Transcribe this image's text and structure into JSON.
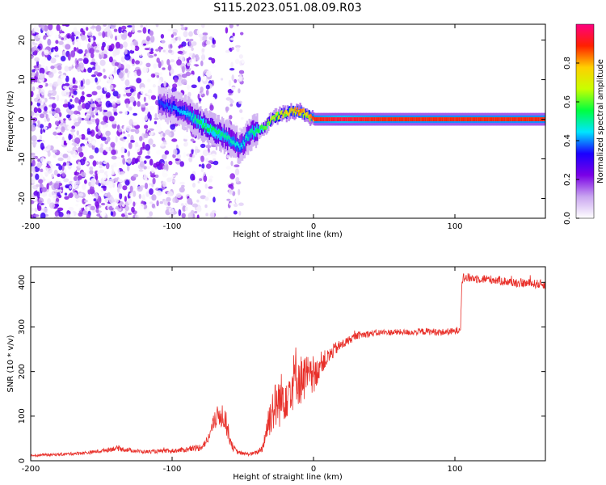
{
  "title": "S115.2023.051.08.09.R03",
  "colors": {
    "snr_line": "#e8302a",
    "axis": "#000000"
  },
  "chart_data": [
    {
      "type": "heatmap",
      "xlabel": "Height of straight line (km)",
      "ylabel": "Frequency (Hz)",
      "xlim": [
        -200,
        164
      ],
      "ylim": [
        -25,
        24
      ],
      "xticks": [
        -200,
        -100,
        0,
        100
      ],
      "yticks": [
        -20,
        -10,
        0,
        10,
        20
      ],
      "xtick_labels": [
        "-200",
        "-100",
        "0",
        "100"
      ],
      "ytick_labels": [
        "-20",
        "-10",
        "0",
        "10",
        "20"
      ],
      "colorbar": {
        "label": "Normalized spectral amplitude",
        "range": [
          0,
          1
        ],
        "ticks": [
          0,
          0.2,
          0.4,
          0.6,
          0.8
        ],
        "tick_labels": [
          "0.0",
          "0.2",
          "0.4",
          "0.6",
          "0.8"
        ],
        "colormap": [
          "#ffffff",
          "#c9a6f0",
          "#7a00e6",
          "#1a00ff",
          "#00e5ff",
          "#00ff40",
          "#c8ff00",
          "#ffd000",
          "#ff2000",
          "#ff0080"
        ]
      },
      "ridge": {
        "x": [
          -110,
          -100,
          -90,
          -80,
          -70,
          -60,
          -52,
          -45,
          -40,
          -35,
          -30,
          -25,
          -20,
          -15,
          -10,
          -5,
          0,
          20,
          50,
          100,
          164
        ],
        "freq": [
          4,
          3,
          1.5,
          -1,
          -3,
          -5,
          -7,
          -3.5,
          -3,
          -2,
          0,
          1,
          1.5,
          2,
          2,
          1,
          0,
          0,
          0,
          0,
          0
        ],
        "amplitude": [
          0.35,
          0.4,
          0.45,
          0.55,
          0.55,
          0.5,
          0.45,
          0.5,
          0.55,
          0.6,
          0.65,
          0.7,
          0.75,
          0.8,
          0.85,
          0.75,
          0.9,
          0.95,
          0.9,
          0.9,
          0.9
        ]
      },
      "noise_region": {
        "x_range": [
          -200,
          -50
        ],
        "freq_range": [
          -25,
          24
        ],
        "max_amplitude": 0.3
      }
    },
    {
      "type": "line",
      "xlabel": "Height of straight line (km)",
      "ylabel": "SNR (10 * v/v)",
      "xlim": [
        -200,
        164
      ],
      "ylim": [
        0,
        435
      ],
      "xticks": [
        -200,
        -100,
        0,
        100
      ],
      "yticks": [
        0,
        100,
        200,
        300,
        400
      ],
      "xtick_labels": [
        "-200",
        "-100",
        "0",
        "100"
      ],
      "ytick_labels": [
        "0",
        "100",
        "200",
        "300",
        "400"
      ],
      "series": [
        {
          "x": [
            -200,
            -180,
            -160,
            -150,
            -140,
            -120,
            -100,
            -90,
            -80,
            -75,
            -70,
            -66,
            -63,
            -60,
            -57,
            -54,
            -50,
            -45,
            -40,
            -36,
            -34,
            -30,
            -25,
            -20,
            -15,
            -12,
            -10,
            -5,
            0,
            5,
            10,
            15,
            20,
            25,
            30,
            40,
            50,
            60,
            70,
            80,
            90,
            100,
            103,
            104,
            105,
            110,
            120,
            130,
            140,
            150,
            164
          ],
          "y": [
            12,
            14,
            18,
            22,
            28,
            20,
            22,
            25,
            30,
            45,
            90,
            105,
            100,
            60,
            30,
            20,
            16,
            15,
            18,
            30,
            60,
            110,
            130,
            150,
            170,
            200,
            180,
            190,
            180,
            220,
            230,
            250,
            260,
            270,
            280,
            285,
            288,
            288,
            288,
            290,
            288,
            290,
            295,
            300,
            410,
            410,
            408,
            405,
            400,
            398,
            395
          ],
          "noise_amplitude": [
            3,
            3,
            4,
            4,
            6,
            4,
            5,
            6,
            8,
            10,
            20,
            30,
            30,
            20,
            8,
            5,
            4,
            4,
            5,
            10,
            30,
            50,
            60,
            60,
            60,
            70,
            60,
            50,
            40,
            25,
            20,
            15,
            12,
            10,
            8,
            8,
            7,
            7,
            7,
            8,
            8,
            8,
            8,
            8,
            12,
            10,
            10,
            10,
            10,
            10,
            10
          ]
        }
      ]
    }
  ]
}
